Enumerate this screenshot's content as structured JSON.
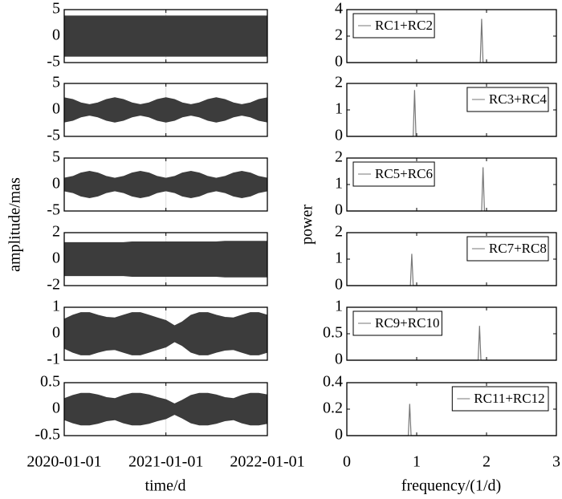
{
  "labels": {
    "left_ylabel": "amplitude/mas",
    "right_ylabel": "power"
  },
  "left_axis": {
    "label": "time/d",
    "xlim": [
      "2020-01-01",
      "2022-01-01"
    ],
    "xticks": [
      "2020-01-01",
      "2021-01-01",
      "2022-01-01"
    ],
    "grid": true,
    "x": [
      "2020-01-01",
      "2020-02-01",
      "2020-03-01",
      "2020-04-01",
      "2020-05-01",
      "2020-06-01",
      "2020-07-01",
      "2020-08-01",
      "2020-09-01",
      "2020-10-01",
      "2020-11-01",
      "2020-12-01",
      "2021-01-01",
      "2021-02-01",
      "2021-03-01",
      "2021-04-01",
      "2021-05-01",
      "2021-06-01",
      "2021-07-01",
      "2021-08-01",
      "2021-09-01",
      "2021-10-01",
      "2021-11-01",
      "2021-12-01",
      "2022-01-01"
    ]
  },
  "right_axis": {
    "label": "frequency/(1/d)",
    "xlim": [
      0,
      3
    ],
    "xticks": [
      0,
      1,
      2,
      3
    ]
  },
  "chart_data": [
    {
      "type": "band",
      "color": "#3c3c3c",
      "ylim": [
        -5,
        5
      ],
      "yticks": [
        -5,
        0,
        5
      ],
      "envelope": [
        3.8,
        3.8,
        3.8,
        3.8,
        3.8,
        3.8,
        3.8,
        3.8,
        3.8,
        3.8,
        3.8,
        3.8,
        3.8,
        3.8,
        3.8,
        3.8,
        3.8,
        3.8,
        3.8,
        3.8,
        3.8,
        3.8,
        3.8,
        3.8,
        3.8
      ]
    },
    {
      "type": "band",
      "color": "#3c3c3c",
      "ylim": [
        -5,
        5
      ],
      "yticks": [
        -5,
        0,
        5
      ],
      "envelope": [
        2.3,
        1.98,
        1.33,
        1.0,
        1.33,
        1.98,
        2.3,
        1.98,
        1.33,
        1.0,
        1.33,
        1.98,
        2.3,
        1.98,
        1.33,
        1.0,
        1.33,
        1.98,
        2.3,
        1.98,
        1.33,
        1.0,
        1.33,
        1.98,
        2.3
      ]
    },
    {
      "type": "band",
      "color": "#3c3c3c",
      "ylim": [
        -5,
        5
      ],
      "yticks": [
        -5,
        0,
        5
      ],
      "envelope": [
        1.2,
        1.53,
        2.18,
        2.5,
        2.18,
        1.53,
        1.2,
        1.53,
        2.18,
        2.5,
        2.18,
        1.53,
        1.2,
        1.53,
        2.18,
        2.5,
        2.18,
        1.53,
        1.2,
        1.53,
        2.18,
        2.5,
        2.18,
        1.53,
        1.2
      ]
    },
    {
      "type": "band",
      "color": "#3c3c3c",
      "ylim": [
        -2,
        2
      ],
      "yticks": [
        -2,
        0,
        2
      ],
      "envelope": [
        1.25,
        1.25,
        1.25,
        1.25,
        1.25,
        1.25,
        1.25,
        1.25,
        1.3,
        1.3,
        1.3,
        1.3,
        1.3,
        1.3,
        1.3,
        1.3,
        1.3,
        1.3,
        1.3,
        1.35,
        1.35,
        1.35,
        1.35,
        1.35,
        1.35
      ]
    },
    {
      "type": "band",
      "color": "#3c3c3c",
      "ylim": [
        -1,
        1
      ],
      "yticks": [
        -1,
        0,
        1
      ],
      "envelope": [
        0.55,
        0.7,
        0.8,
        0.8,
        0.7,
        0.62,
        0.6,
        0.7,
        0.8,
        0.8,
        0.7,
        0.6,
        0.5,
        0.3,
        0.45,
        0.7,
        0.8,
        0.8,
        0.7,
        0.62,
        0.6,
        0.7,
        0.8,
        0.8,
        0.7
      ]
    },
    {
      "type": "band",
      "color": "#3c3c3c",
      "ylim": [
        -0.5,
        0.5
      ],
      "yticks": [
        -0.5,
        0,
        0.5
      ],
      "envelope": [
        0.2,
        0.26,
        0.3,
        0.3,
        0.27,
        0.22,
        0.2,
        0.26,
        0.3,
        0.3,
        0.27,
        0.22,
        0.18,
        0.1,
        0.17,
        0.26,
        0.3,
        0.3,
        0.27,
        0.22,
        0.2,
        0.26,
        0.3,
        0.3,
        0.27
      ]
    },
    {
      "type": "line",
      "ylim": [
        0,
        4
      ],
      "yticks": [
        0,
        2,
        4
      ],
      "legend": "upper left",
      "x": [
        0,
        1.91,
        1.93,
        1.95,
        3
      ],
      "series": [
        {
          "name": "RC1+RC2",
          "color": "#777777",
          "values": [
            0,
            0,
            3.3,
            0,
            0
          ]
        }
      ]
    },
    {
      "type": "line",
      "ylim": [
        0,
        2
      ],
      "yticks": [
        0,
        1,
        2
      ],
      "legend": "upper right",
      "x": [
        0,
        0.95,
        0.97,
        0.99,
        3
      ],
      "series": [
        {
          "name": "RC3+RC4",
          "color": "#777777",
          "values": [
            0,
            0,
            1.75,
            0,
            0
          ]
        }
      ]
    },
    {
      "type": "line",
      "ylim": [
        0,
        2
      ],
      "yticks": [
        0,
        1,
        2
      ],
      "legend": "upper left",
      "x": [
        0,
        1.93,
        1.95,
        1.97,
        3
      ],
      "series": [
        {
          "name": "RC5+RC6",
          "color": "#777777",
          "values": [
            0,
            0,
            1.65,
            0,
            0
          ]
        }
      ]
    },
    {
      "type": "line",
      "ylim": [
        0,
        2
      ],
      "yticks": [
        0,
        1,
        2
      ],
      "legend": "upper right",
      "x": [
        0,
        0.91,
        0.93,
        0.95,
        3
      ],
      "series": [
        {
          "name": "RC7+RC8",
          "color": "#777777",
          "values": [
            0,
            0,
            1.2,
            0,
            0
          ]
        }
      ]
    },
    {
      "type": "line",
      "ylim": [
        0,
        1
      ],
      "yticks": [
        0,
        0.5,
        1
      ],
      "legend": "upper left",
      "x": [
        0,
        1.88,
        1.9,
        1.92,
        3
      ],
      "series": [
        {
          "name": "RC9+RC10",
          "color": "#777777",
          "values": [
            0,
            0,
            0.65,
            0,
            0
          ]
        }
      ]
    },
    {
      "type": "line",
      "ylim": [
        0,
        0.4
      ],
      "yticks": [
        0,
        0.2,
        0.4
      ],
      "legend": "upper right",
      "x": [
        0,
        0.88,
        0.9,
        0.92,
        3
      ],
      "series": [
        {
          "name": "RC11+RC12",
          "color": "#777777",
          "values": [
            0,
            0,
            0.24,
            0,
            0
          ]
        }
      ]
    }
  ]
}
